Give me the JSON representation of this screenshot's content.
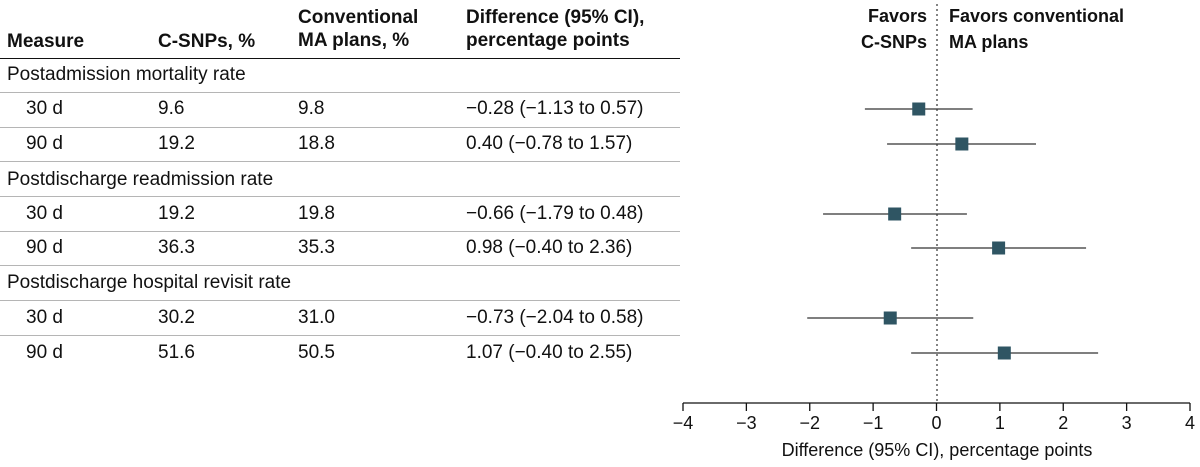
{
  "table": {
    "headers": {
      "measure": "Measure",
      "csnp": "C-SNPs, %",
      "conv": [
        "Conventional",
        "MA plans, %"
      ],
      "diff": [
        "Difference (95% CI),",
        "percentage points"
      ]
    },
    "groups": [
      {
        "label": "Postadmission mortality rate",
        "rows": [
          {
            "label": "30 d",
            "csnp": "9.6",
            "conv": "9.8",
            "diff": "−0.28 (−1.13 to 0.57)"
          },
          {
            "label": "90 d",
            "csnp": "19.2",
            "conv": "18.8",
            "diff": "0.40 (−0.78 to 1.57)"
          }
        ]
      },
      {
        "label": "Postdischarge readmission rate",
        "rows": [
          {
            "label": "30 d",
            "csnp": "19.2",
            "conv": "19.8",
            "diff": "−0.66 (−1.79 to 0.48)"
          },
          {
            "label": "90 d",
            "csnp": "36.3",
            "conv": "35.3",
            "diff": "0.98 (−0.40 to 2.36)"
          }
        ]
      },
      {
        "label": "Postdischarge hospital revisit rate",
        "rows": [
          {
            "label": "30 d",
            "csnp": "30.2",
            "conv": "31.0",
            "diff": "−0.73 (−2.04 to 0.58)"
          },
          {
            "label": "90 d",
            "csnp": "51.6",
            "conv": "50.5",
            "diff": "1.07 (−0.40 to 2.55)"
          }
        ]
      }
    ]
  },
  "chart_data": {
    "type": "scatter",
    "xlabel": "Difference (95% CI), percentage points",
    "xlim": [
      -4,
      4
    ],
    "xticks": [
      -4,
      -3,
      -2,
      -1,
      0,
      1,
      2,
      3,
      4
    ],
    "reference_line": 0,
    "favors_left": [
      "Favors",
      "C-SNPs"
    ],
    "favors_right": [
      "Favors conventional",
      "MA plans"
    ],
    "marker_color": "#2f5563",
    "points": [
      {
        "group": "Postadmission mortality rate",
        "row": "30 d",
        "estimate": -0.28,
        "low": -1.13,
        "high": 0.57
      },
      {
        "group": "Postadmission mortality rate",
        "row": "90 d",
        "estimate": 0.4,
        "low": -0.78,
        "high": 1.57
      },
      {
        "group": "Postdischarge readmission rate",
        "row": "30 d",
        "estimate": -0.66,
        "low": -1.79,
        "high": 0.48
      },
      {
        "group": "Postdischarge readmission rate",
        "row": "90 d",
        "estimate": 0.98,
        "low": -0.4,
        "high": 2.36
      },
      {
        "group": "Postdischarge hospital revisit rate",
        "row": "30 d",
        "estimate": -0.73,
        "low": -2.04,
        "high": 0.58
      },
      {
        "group": "Postdischarge hospital revisit rate",
        "row": "90 d",
        "estimate": 1.07,
        "low": -0.4,
        "high": 2.55
      }
    ]
  }
}
